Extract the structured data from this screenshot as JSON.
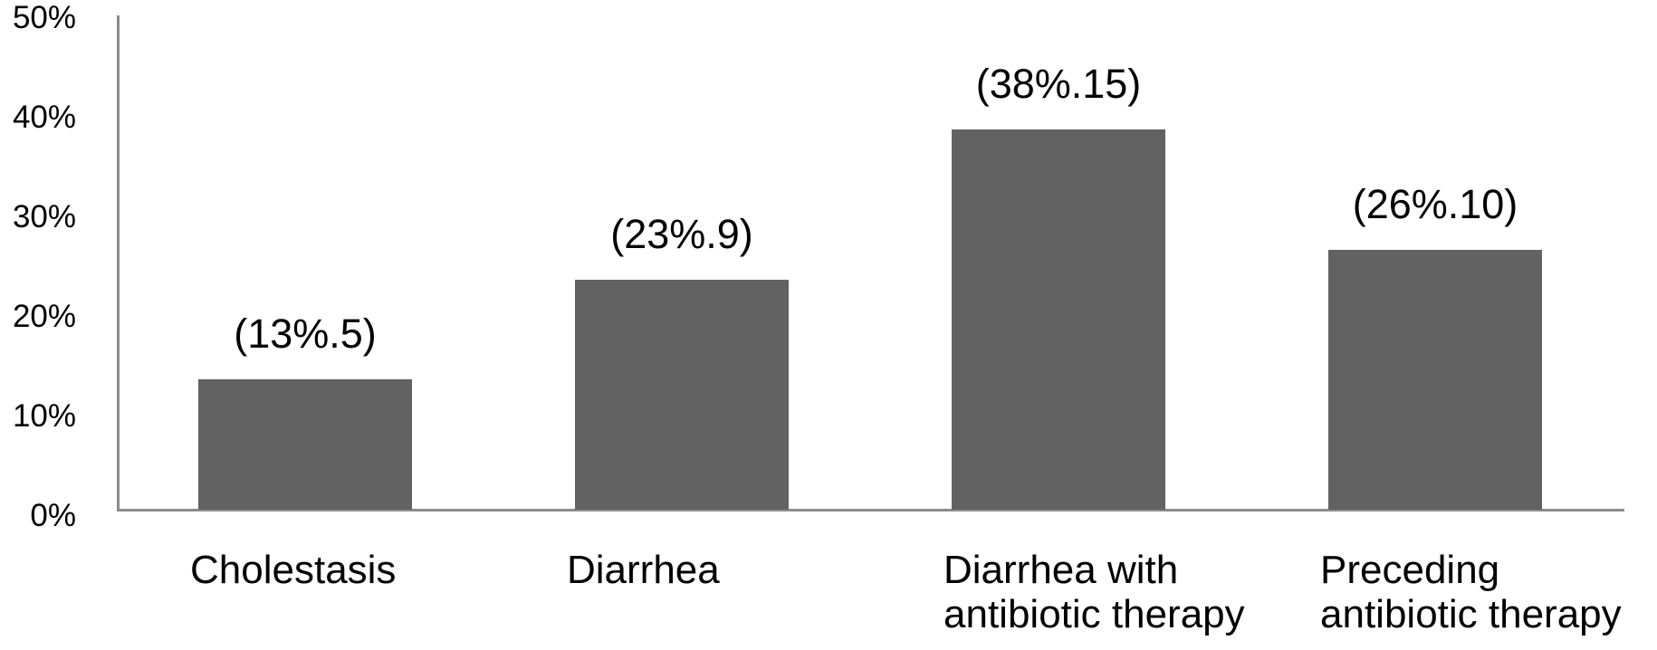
{
  "chart_data": {
    "type": "bar",
    "title": "",
    "xlabel": "",
    "ylabel": "",
    "ylim": [
      0,
      50
    ],
    "yticks": [
      "0%",
      "10%",
      "20%",
      "30%",
      "40%",
      "50%"
    ],
    "grid": false,
    "legend": null,
    "categories": [
      [
        "Cholestasis"
      ],
      [
        "Diarrhea"
      ],
      [
        "Diarrhea with",
        "antibiotic therapy"
      ],
      [
        "Preceding",
        "antibiotic therapy"
      ]
    ],
    "values": [
      13,
      23,
      38,
      26
    ],
    "data_labels": [
      "(13%.5)",
      "(23%.9)",
      "(38%.15)",
      "(26%.10)"
    ],
    "counts": [
      5,
      9,
      15,
      10
    ],
    "bar_color": "#626262",
    "axis_color": "#8c8c8c"
  }
}
